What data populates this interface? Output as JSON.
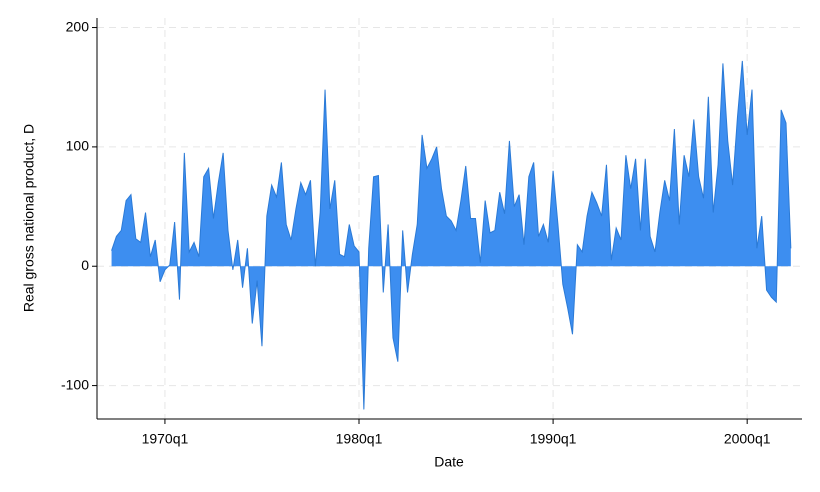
{
  "chart_data": {
    "type": "area",
    "x_label": "Date",
    "y_label": "Real gross national product, D",
    "color": "#3d8ef0",
    "edge_color": "#2b7ad6",
    "grid": true,
    "xlim": [
      26,
      171.3
    ],
    "ylim": [
      -128,
      208
    ],
    "xticks": [
      {
        "value": 40,
        "label": "1970q1"
      },
      {
        "value": 80,
        "label": "1980q1"
      },
      {
        "value": 120,
        "label": "1990q1"
      },
      {
        "value": 160,
        "label": "2000q1"
      }
    ],
    "yticks": [
      -100,
      0,
      100,
      200
    ],
    "x": [
      "1967q2",
      "1967q3",
      "1967q4",
      "1968q1",
      "1968q2",
      "1968q3",
      "1968q4",
      "1969q1",
      "1969q2",
      "1969q3",
      "1969q4",
      "1970q1",
      "1970q2",
      "1970q3",
      "1970q4",
      "1971q1",
      "1971q2",
      "1971q3",
      "1971q4",
      "1972q1",
      "1972q2",
      "1972q3",
      "1972q4",
      "1973q1",
      "1973q2",
      "1973q3",
      "1973q4",
      "1974q1",
      "1974q2",
      "1974q3",
      "1974q4",
      "1975q1",
      "1975q2",
      "1975q3",
      "1975q4",
      "1976q1",
      "1976q2",
      "1976q3",
      "1976q4",
      "1977q1",
      "1977q2",
      "1977q3",
      "1977q4",
      "1978q1",
      "1978q2",
      "1978q3",
      "1978q4",
      "1979q1",
      "1979q2",
      "1979q3",
      "1979q4",
      "1980q1",
      "1980q2",
      "1980q3",
      "1980q4",
      "1981q1",
      "1981q2",
      "1981q3",
      "1981q4",
      "1982q1",
      "1982q2",
      "1982q3",
      "1982q4",
      "1983q1",
      "1983q2",
      "1983q3",
      "1983q4",
      "1984q1",
      "1984q2",
      "1984q3",
      "1984q4",
      "1985q1",
      "1985q2",
      "1985q3",
      "1985q4",
      "1986q1",
      "1986q2",
      "1986q3",
      "1986q4",
      "1987q1",
      "1987q2",
      "1987q3",
      "1987q4",
      "1988q1",
      "1988q2",
      "1988q3",
      "1988q4",
      "1989q1",
      "1989q2",
      "1989q3",
      "1989q4",
      "1990q1",
      "1990q2",
      "1990q3",
      "1990q4",
      "1991q1",
      "1991q2",
      "1991q3",
      "1991q4",
      "1992q1",
      "1992q2",
      "1992q3",
      "1992q4",
      "1993q1",
      "1993q2",
      "1993q3",
      "1993q4",
      "1994q1",
      "1994q2",
      "1994q3",
      "1994q4",
      "1995q1",
      "1995q2",
      "1995q3",
      "1995q4",
      "1996q1",
      "1996q2",
      "1996q3",
      "1996q4",
      "1997q1",
      "1997q2",
      "1997q3",
      "1997q4",
      "1998q1",
      "1998q2",
      "1998q3",
      "1998q4",
      "1999q1",
      "1999q2",
      "1999q3",
      "1999q4",
      "2000q1",
      "2000q2",
      "2000q3",
      "2000q4",
      "2001q1",
      "2001q2",
      "2001q3",
      "2001q4",
      "2002q1",
      "2002q2"
    ],
    "values": [
      13,
      25,
      30,
      55,
      60,
      23,
      20,
      45,
      8,
      22,
      -13,
      -3,
      1,
      37,
      -28,
      95,
      12,
      20,
      8,
      75,
      82,
      40,
      70,
      95,
      30,
      -3,
      22,
      -18,
      15,
      -48,
      -12,
      -67,
      42,
      68,
      58,
      87,
      35,
      22,
      48,
      70,
      60,
      72,
      0,
      45,
      148,
      48,
      72,
      10,
      8,
      35,
      17,
      12,
      -120,
      15,
      75,
      76,
      -22,
      35,
      -60,
      -80,
      30,
      -22,
      10,
      35,
      110,
      82,
      90,
      100,
      65,
      42,
      38,
      30,
      55,
      84,
      40,
      40,
      3,
      55,
      28,
      30,
      62,
      44,
      105,
      50,
      60,
      18,
      75,
      87,
      25,
      35,
      20,
      80,
      35,
      -15,
      -35,
      -57,
      18,
      12,
      42,
      62,
      53,
      42,
      85,
      5,
      32,
      22,
      93,
      65,
      90,
      30,
      90,
      25,
      12,
      45,
      72,
      55,
      115,
      35,
      93,
      75,
      123,
      75,
      57,
      142,
      45,
      85,
      170,
      105,
      68,
      125,
      172,
      110,
      148,
      15,
      42,
      -20,
      -26,
      -30,
      131,
      120,
      15
    ]
  }
}
